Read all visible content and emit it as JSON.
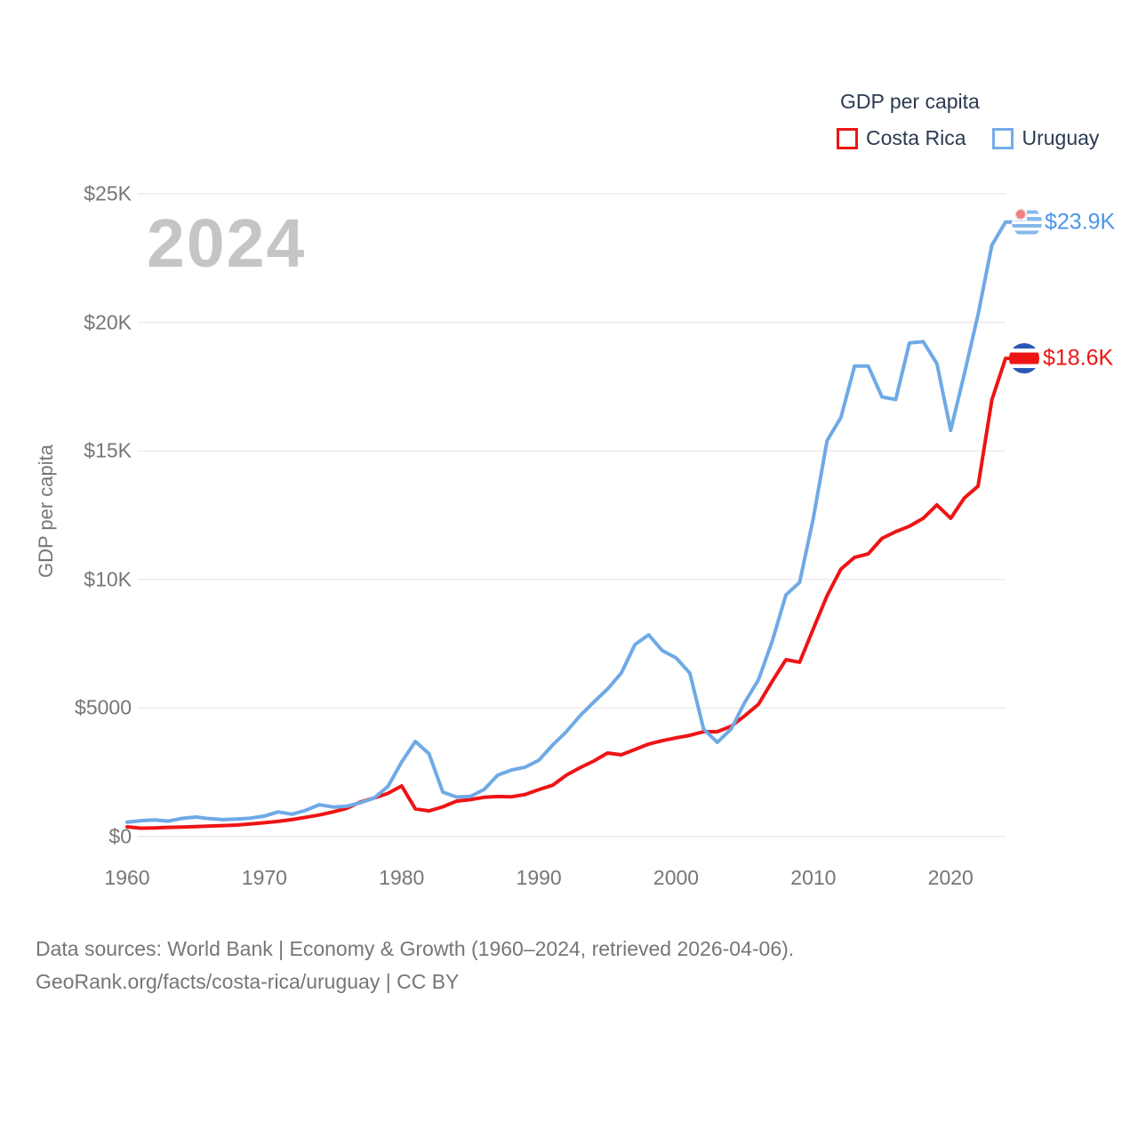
{
  "legend": {
    "title": "GDP per capita",
    "items": [
      {
        "label": "Costa Rica",
        "color": "#ee1414"
      },
      {
        "label": "Uruguay",
        "color": "#74abe8"
      }
    ]
  },
  "watermark": "2024",
  "y_axis": {
    "title": "GDP per capita",
    "ticks": [
      "$25K",
      "$20K",
      "$15K",
      "$10K",
      "$5000",
      "$0"
    ],
    "tick_values": [
      25000,
      20000,
      15000,
      10000,
      5000,
      0
    ]
  },
  "x_axis": {
    "ticks": [
      "1960",
      "1970",
      "1980",
      "1990",
      "2000",
      "2010",
      "2020"
    ],
    "tick_values": [
      1960,
      1970,
      1980,
      1990,
      2000,
      2010,
      2020
    ]
  },
  "end_labels": {
    "uruguay": {
      "value": "$23.9K",
      "color": "#4d96e8",
      "flag": "uruguay-flag-icon"
    },
    "costa_rica": {
      "value": "$18.6K",
      "color": "#ee1414",
      "flag": "costa-rica-flag-icon"
    }
  },
  "footer": {
    "line1": "Data sources: World Bank | Economy & Growth (1960–2024, retrieved 2026-04-06).",
    "line2": "GeoRank.org/facts/costa-rica/uruguay | CC BY"
  },
  "chart_data": {
    "type": "line",
    "title": "GDP per capita",
    "ylabel": "GDP per capita",
    "xlabel": "",
    "xlim": [
      1960,
      2024
    ],
    "ylim": [
      0,
      25000
    ],
    "grid": "horizontal",
    "legend_position": "top-right",
    "x": [
      1960,
      1961,
      1962,
      1963,
      1964,
      1965,
      1966,
      1967,
      1968,
      1969,
      1970,
      1971,
      1972,
      1973,
      1974,
      1975,
      1976,
      1977,
      1978,
      1979,
      1980,
      1981,
      1982,
      1983,
      1984,
      1985,
      1986,
      1987,
      1988,
      1989,
      1990,
      1991,
      1992,
      1993,
      1994,
      1995,
      1996,
      1997,
      1998,
      1999,
      2000,
      2001,
      2002,
      2003,
      2004,
      2005,
      2006,
      2007,
      2008,
      2009,
      2010,
      2011,
      2012,
      2013,
      2014,
      2015,
      2016,
      2017,
      2018,
      2019,
      2020,
      2021,
      2022,
      2023,
      2024
    ],
    "series": [
      {
        "name": "Costa Rica",
        "color": "#ee1414",
        "end_label": "$18.6K",
        "values": [
          380,
          330,
          340,
          360,
          370,
          390,
          410,
          430,
          450,
          490,
          540,
          590,
          660,
          750,
          840,
          960,
          1100,
          1350,
          1500,
          1680,
          1970,
          1080,
          1000,
          1160,
          1380,
          1440,
          1530,
          1560,
          1550,
          1640,
          1830,
          2000,
          2390,
          2680,
          2940,
          3250,
          3180,
          3390,
          3600,
          3730,
          3840,
          3940,
          4080,
          4080,
          4290,
          4700,
          5150,
          6040,
          6880,
          6780,
          8090,
          9370,
          10400,
          10860,
          11000,
          11600,
          11860,
          12070,
          12380,
          12900,
          12380,
          13170,
          13630,
          16980,
          18600
        ]
      },
      {
        "name": "Uruguay",
        "color": "#6fa9e6",
        "end_label": "$23.9K",
        "values": [
          560,
          620,
          650,
          600,
          710,
          760,
          700,
          660,
          680,
          720,
          800,
          960,
          870,
          1020,
          1240,
          1150,
          1180,
          1320,
          1500,
          1950,
          2900,
          3700,
          3220,
          1730,
          1540,
          1560,
          1830,
          2390,
          2590,
          2700,
          2970,
          3560,
          4080,
          4700,
          5230,
          5740,
          6360,
          7470,
          7850,
          7230,
          6950,
          6360,
          4180,
          3670,
          4180,
          5220,
          6100,
          7600,
          9400,
          9890,
          12400,
          15400,
          16300,
          18300,
          18300,
          17100,
          17000,
          19200,
          19250,
          18400,
          15800,
          18000,
          20300,
          23000,
          23900
        ]
      }
    ]
  }
}
